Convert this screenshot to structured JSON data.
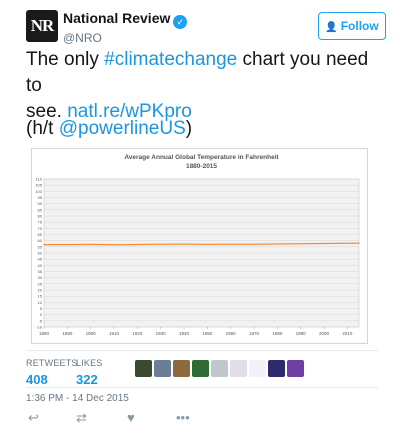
{
  "tweet": {
    "avatar_text": "NR",
    "display_name": "National Review",
    "handle": "@NRO",
    "follow_label": "Follow",
    "text_line1_pre": "The only ",
    "text_hashtag": "#climatechange",
    "text_line1_post": " chart you need to",
    "text_line2_pre": "see. ",
    "text_link": "natl.re/wPKpro",
    "ht_pre": "(h/t ",
    "ht_handle": "@powerlineUS",
    "ht_post": ")",
    "timestamp": "1:36 PM - 14 Dec 2015"
  },
  "stats": {
    "retweets_label": "RETWEETS",
    "retweets_value": "408",
    "likes_label": "LIKES",
    "likes_value": "322"
  },
  "likers": {
    "colors": [
      "#3b4a2f",
      "#6a7f96",
      "#8a6a3e",
      "#2f6b35",
      "#bfc8cf",
      "#e2dee6",
      "#f3f0f8",
      "#2f2a6e",
      "#6f3fa5"
    ]
  },
  "actions": {
    "reply_icon": "reply-icon",
    "retweet_icon": "retweet-icon",
    "like_icon": "heart-icon",
    "more_icon": "more-icon"
  },
  "chart_data": {
    "type": "line",
    "title": "Average Annual Global Temperature in Fahrenheit",
    "subtitle": "1880-2015",
    "xlabel": "",
    "ylabel": "",
    "xlim": [
      1880,
      2015
    ],
    "ylim": [
      -10,
      110
    ],
    "x_ticks": [
      1880,
      1890,
      1900,
      1910,
      1920,
      1930,
      1940,
      1950,
      1960,
      1970,
      1980,
      1990,
      2000,
      2010
    ],
    "x_tick_labels": [
      "1880",
      "1890",
      "1900",
      "1910",
      "1920",
      "1930",
      "1940",
      "1950",
      "1960",
      "1970",
      "1980",
      "1990",
      "2000",
      "2010"
    ],
    "y_ticks": [
      -10,
      -5,
      0,
      5,
      10,
      15,
      20,
      25,
      30,
      35,
      40,
      45,
      50,
      55,
      60,
      65,
      70,
      75,
      80,
      85,
      90,
      95,
      100,
      105,
      110
    ],
    "y_tick_labels": [
      "-10",
      "-5",
      "0",
      "5",
      "10",
      "15",
      "20",
      "25",
      "30",
      "35",
      "40",
      "45",
      "50",
      "55",
      "60",
      "65",
      "70",
      "75",
      "80",
      "85",
      "90",
      "95",
      "100",
      "105",
      "110"
    ],
    "grid": true,
    "line_color": "#f28c38",
    "series": [
      {
        "x": [
          1880,
          1890,
          1900,
          1910,
          1920,
          1930,
          1940,
          1950,
          1960,
          1970,
          1980,
          1990,
          2000,
          2010,
          2015
        ],
        "values": [
          56.8,
          56.8,
          57.0,
          56.7,
          56.9,
          57.1,
          57.2,
          57.0,
          57.1,
          57.1,
          57.3,
          57.5,
          57.7,
          57.9,
          58.0
        ]
      }
    ]
  }
}
